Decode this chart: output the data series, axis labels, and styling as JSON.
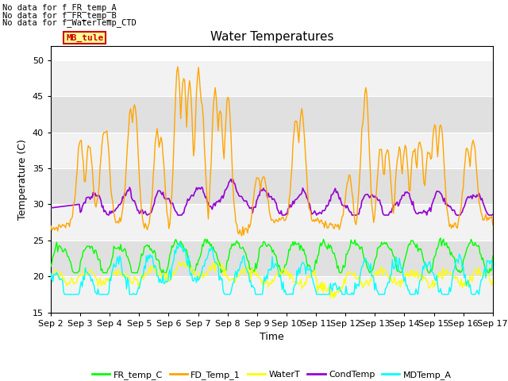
{
  "title": "Water Temperatures",
  "xlabel": "Time",
  "ylabel": "Temperature (C)",
  "ylim": [
    15,
    52
  ],
  "yticks": [
    15,
    20,
    25,
    30,
    35,
    40,
    45,
    50
  ],
  "x_labels": [
    "Sep 2",
    "Sep 3",
    "Sep 4",
    "Sep 5",
    "Sep 6",
    "Sep 7",
    "Sep 8",
    "Sep 9",
    "Sep 10",
    "Sep 11",
    "Sep 12",
    "Sep 13",
    "Sep 14",
    "Sep 15",
    "Sep 16",
    "Sep 17"
  ],
  "no_data_texts": [
    "No data for f_FR_temp_A",
    "No data for f_FR_temp_B",
    "No data for f_WaterTemp_CTD"
  ],
  "mb_tule_label": "MB_tule",
  "colors": {
    "FR_temp_C": "#00ff00",
    "FD_Temp_1": "#ffa500",
    "WaterT": "#ffff00",
    "CondTemp": "#9400d3",
    "MDTemp_A": "#00ffff"
  },
  "band_dark_color": "#dddddd",
  "band_light_color": "#f0f0f0",
  "background_color": "#ffffff",
  "figsize": [
    6.4,
    4.8
  ],
  "dpi": 100
}
